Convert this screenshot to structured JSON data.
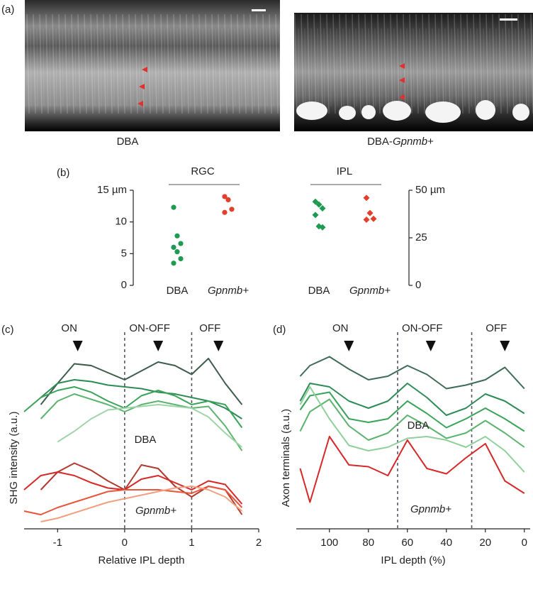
{
  "panel_labels": [
    "(a)",
    "(b)",
    "(c)",
    "(d)"
  ],
  "images": [
    {
      "label": [
        "DBA"
      ]
    },
    {
      "label": [
        "DBA-",
        "Gpnmb",
        "+"
      ]
    }
  ],
  "chart_data": [
    {
      "type": "dot",
      "ylim": [
        0,
        15
      ],
      "yticks": [
        0,
        5,
        10,
        {
          "value": 15,
          "label": "15 µm"
        }
      ],
      "y2lim": [
        0,
        50
      ],
      "y2ticks": [
        0,
        25,
        {
          "value": 50,
          "label": "50 µm"
        }
      ],
      "groups": [
        {
          "title": "RGC",
          "axis": "y",
          "marker": "circle",
          "categories": [
            "DBA",
            "Gpnmb+"
          ],
          "colors": [
            "#1e9a52",
            "#e0402c"
          ],
          "values": [
            [
              12.3,
              7.8,
              6.6,
              6.0,
              5.3,
              4.2,
              3.5
            ],
            [
              14.0,
              13.5,
              12.0,
              11.5
            ]
          ]
        },
        {
          "title": "IPL",
          "axis": "y2",
          "marker": "diamond",
          "categories": [
            "DBA",
            "Gpnmb+"
          ],
          "colors": [
            "#1e9a52",
            "#e0402c"
          ],
          "values": [
            [
              44,
              42.5,
              40.5,
              37,
              31,
              30.5
            ],
            [
              46,
              38,
              35,
              34.5
            ]
          ]
        }
      ]
    },
    {
      "type": "line",
      "xlabel": "Relative IPL depth",
      "ylabel": "SHG intensity (a.u.)",
      "xlim": [
        -1.5,
        2
      ],
      "xticks": [
        -1,
        0,
        1,
        2
      ],
      "ylim": [
        0,
        10
      ],
      "x": [
        -1.5,
        -1.25,
        -1,
        -0.75,
        -0.5,
        -0.25,
        0,
        0.25,
        0.5,
        0.75,
        1,
        1.25,
        1.5,
        1.75,
        2
      ],
      "series": [
        {
          "color": "#3d5c4d",
          "values": [
            null,
            6.8,
            8,
            9.1,
            9,
            8.6,
            8.2,
            8.7,
            9.2,
            9,
            8.5,
            9.4,
            8,
            6.8,
            null
          ]
        },
        {
          "color": "#2e8b57",
          "values": [
            null,
            7.2,
            8,
            8.2,
            8.1,
            7.9,
            7.8,
            7.7,
            7.5,
            7.4,
            7.2,
            7,
            6.6,
            6.0,
            null
          ]
        },
        {
          "color": "#3aa35a",
          "values": [
            6.4,
            7.2,
            7.6,
            7.8,
            7.5,
            7.0,
            6.6,
            7.3,
            7.6,
            7.3,
            6.8,
            7.0,
            6.8,
            5.5,
            null
          ]
        },
        {
          "color": "#5bb36e",
          "values": [
            null,
            6.0,
            7.0,
            7.4,
            7.1,
            6.8,
            6.4,
            6.8,
            7.0,
            6.8,
            6.6,
            6.7,
            5.6,
            4.2,
            null
          ]
        },
        {
          "color": "#9fd3a8",
          "values": [
            null,
            null,
            4.7,
            5.3,
            6.0,
            6.5,
            6.6,
            6.7,
            6.8,
            6.7,
            6.6,
            6.1,
            5.2,
            4.4,
            null
          ]
        },
        {
          "color": "#b03a2e",
          "values": [
            null,
            2.0,
            3.0,
            3.5,
            3.1,
            2.5,
            2.0,
            3.4,
            3.2,
            2.2,
            1.6,
            2.2,
            2.0,
            0.6,
            null
          ]
        },
        {
          "color": "#d62828",
          "values": [
            2.0,
            2.8,
            3.0,
            2.8,
            2.4,
            2.1,
            2.0,
            2.6,
            2.8,
            2.4,
            2.0,
            2.5,
            2.3,
            1.2,
            null
          ]
        },
        {
          "color": "#e8553a",
          "values": [
            0.8,
            0.6,
            1.0,
            1.3,
            1.6,
            1.9,
            2.0,
            2.0,
            2.0,
            1.9,
            1.8,
            2.2,
            2.0,
            1.0,
            null
          ]
        },
        {
          "color": "#f0a080",
          "values": [
            null,
            0.2,
            0.4,
            0.7,
            1.0,
            1.3,
            1.5,
            1.7,
            1.9,
            2.1,
            2.2,
            2.0,
            1.6,
            0.8,
            null
          ]
        }
      ],
      "dividers": [
        0,
        1
      ],
      "annotations": [
        {
          "text": "ON",
          "x": -0.7
        },
        {
          "text": "ON-OFF",
          "x": 0.5
        },
        {
          "text": "OFF",
          "x": 1.4
        }
      ],
      "labels": [
        {
          "text": "DBA",
          "color": "#2ea35a"
        },
        {
          "text": "Gpnmb+",
          "color": "#d62828"
        }
      ]
    },
    {
      "type": "line",
      "xlabel": "IPL depth (%)",
      "ylabel": "Axon terminals (a.u.)",
      "xlim": [
        117,
        -3
      ],
      "xticks": [
        100,
        80,
        60,
        40,
        20,
        0
      ],
      "ylim": [
        0,
        10
      ],
      "x": [
        115,
        110,
        100,
        90,
        80,
        70,
        60,
        50,
        40,
        30,
        20,
        10,
        0
      ],
      "series": [
        {
          "color": "#3d6b55",
          "values": [
            8.4,
            9.0,
            9.5,
            8.8,
            8.2,
            8.4,
            9.0,
            8.5,
            7.7,
            7.9,
            8.2,
            8.9,
            7.7
          ]
        },
        {
          "color": "#2e8b57",
          "values": [
            7.0,
            8.0,
            7.8,
            7.0,
            6.6,
            7.0,
            8.0,
            7.2,
            6.2,
            6.6,
            7.4,
            7.0,
            6.3
          ]
        },
        {
          "color": "#3aa35a",
          "values": [
            6.5,
            7.3,
            7.5,
            6.0,
            5.8,
            6.0,
            7.0,
            6.3,
            5.5,
            6.0,
            6.6,
            6.0,
            5.3
          ]
        },
        {
          "color": "#5bb36e",
          "values": [
            5.3,
            6.4,
            7.1,
            5.6,
            4.8,
            5.2,
            6.2,
            5.6,
            4.9,
            5.2,
            5.9,
            5.2,
            4.4
          ]
        },
        {
          "color": "#8fcf9a",
          "values": [
            6.8,
            7.8,
            6.0,
            4.5,
            4.2,
            4.4,
            4.9,
            5.0,
            4.8,
            4.4,
            5.0,
            4.2,
            3.0
          ]
        },
        {
          "color": "#d62828",
          "values": [
            3.2,
            1.3,
            5.0,
            3.4,
            3.3,
            2.8,
            4.8,
            3.2,
            2.9,
            3.8,
            4.6,
            2.5,
            1.8
          ]
        }
      ],
      "dividers": [
        65,
        27
      ],
      "annotations": [
        {
          "text": "ON",
          "x": 90
        },
        {
          "text": "ON-OFF",
          "x": 48
        },
        {
          "text": "OFF",
          "x": 10
        }
      ],
      "labels": [
        {
          "text": "DBA",
          "color": "#2ea35a"
        },
        {
          "text": "Gpnmb+",
          "color": "#d62828"
        }
      ]
    }
  ]
}
